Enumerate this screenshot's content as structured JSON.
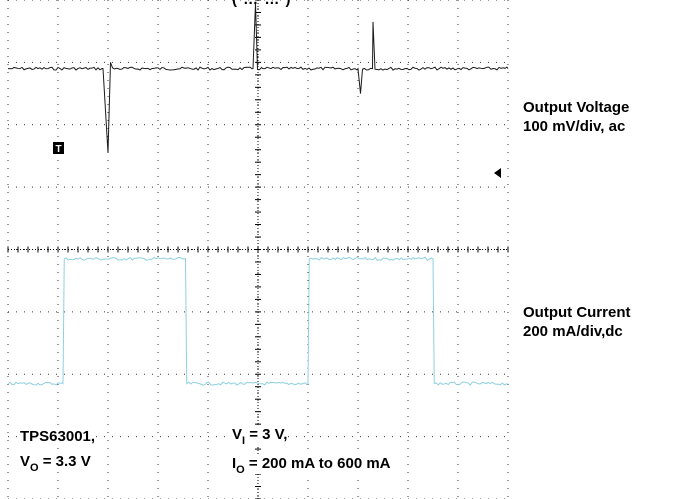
{
  "top_fragment": "(   … …   )",
  "right_labels": {
    "voltage_line1": "Output Voltage",
    "voltage_line2": "100 mV/div, ac",
    "current_line1": "Output Current",
    "current_line2": "200 mA/div,dc"
  },
  "trigger_marker": "T",
  "conditions": {
    "device": "TPS63001,",
    "vo_prefix": "V",
    "vo_sub": "O",
    "vo_rest": " = 3.3 V",
    "vi_prefix": "V",
    "vi_sub": "I",
    "vi_rest": " = 3 V,",
    "io_prefix": "I",
    "io_sub": "O",
    "io_rest": " = 200 mA to 600 mA"
  },
  "colors": {
    "background": "#ffffff",
    "grid": "#000000",
    "voltage_trace": "#1a1a1a",
    "current_trace": "#8fd0e0"
  },
  "chart_data": {
    "type": "line",
    "title": "",
    "xlabel": "",
    "ylabel": "",
    "grid": true,
    "x_divisions": 10,
    "y_divisions": 8,
    "series": [
      {
        "name": "Output Voltage",
        "units": "div",
        "baseline": 0,
        "x": [
          0,
          1.9,
          2.0,
          2.05,
          2.2,
          4.9,
          4.95,
          5.1,
          7.0,
          7.05,
          7.3,
          10
        ],
        "values": [
          0,
          0,
          -1.35,
          0.1,
          0,
          0,
          1.05,
          0,
          0,
          -0.4,
          0.75,
          0
        ]
      },
      {
        "name": "Output Current",
        "units": "div",
        "x": [
          0,
          2.2,
          2.25,
          7.1,
          7.15,
          12.0,
          12.05,
          17.0,
          17.05,
          20
        ],
        "x_scale_note": "",
        "values": [
          0,
          0,
          1,
          1,
          0,
          0,
          1,
          1,
          0,
          0
        ]
      }
    ]
  }
}
